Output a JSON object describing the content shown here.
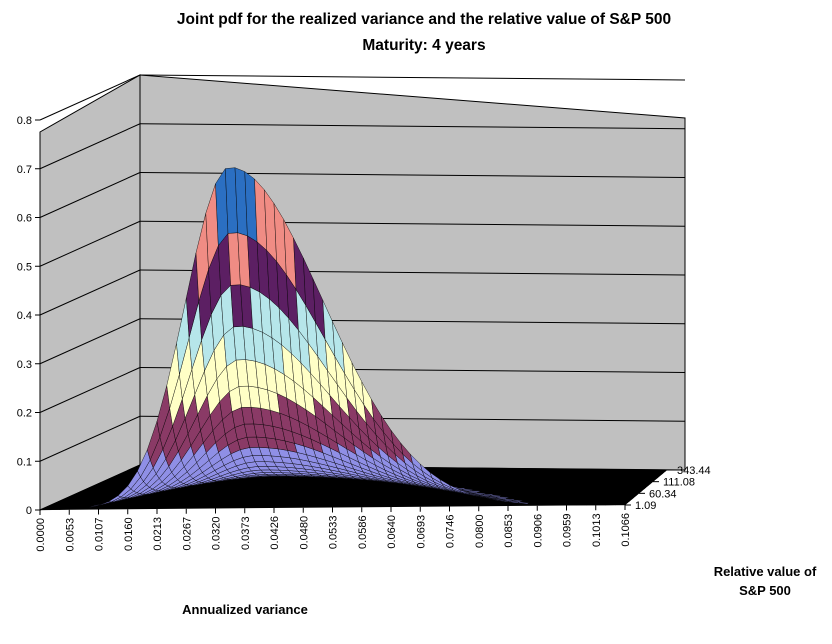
{
  "chart_data": {
    "type": "surface",
    "title": "Joint pdf for the realized variance and the relative value of S&P 500",
    "subtitle": "Maturity: 4 years",
    "zlim": [
      0,
      0.8
    ],
    "z_ticks": [
      "0",
      "0.1",
      "0.2",
      "0.3",
      "0.4",
      "0.5",
      "0.6",
      "0.7",
      "0.8"
    ],
    "x_ticks": [
      "0.0000",
      "0.0053",
      "0.0107",
      "0.0160",
      "0.0213",
      "0.0267",
      "0.0320",
      "0.0373",
      "0.0426",
      "0.0480",
      "0.0533",
      "0.0586",
      "0.0640",
      "0.0693",
      "0.0746",
      "0.0800",
      "0.0853",
      "0.0906",
      "0.0959",
      "0.1013",
      "0.1066"
    ],
    "y_ticks": [
      "1.09",
      "60.34",
      "111.08",
      "343.44"
    ],
    "xlabel": "Annualized variance",
    "ylabel_line1": "Relative value of",
    "ylabel_line2": "S&P 500",
    "peak": {
      "x": 0.0345,
      "y": 1.09,
      "z": 0.7
    },
    "grid": true,
    "band_colors": [
      "#8f8fe6",
      "#8a3a66",
      "#ffffc6",
      "#b6e6ea",
      "#5c1f63",
      "#f08c84",
      "#2b6fc2"
    ]
  }
}
